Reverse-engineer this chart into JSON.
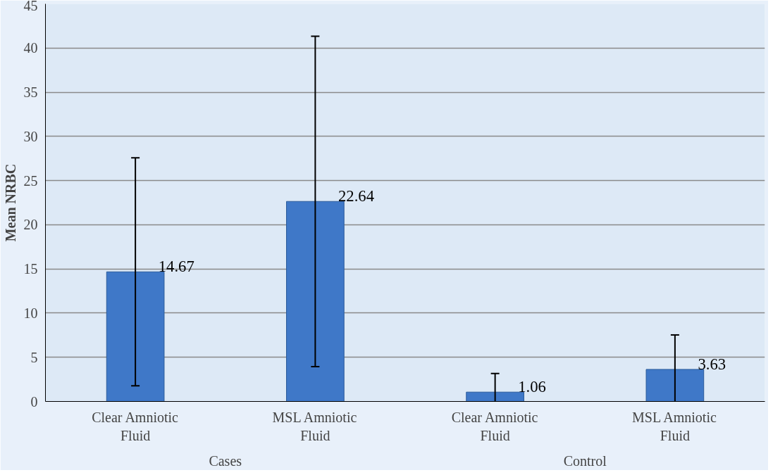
{
  "chart_data": {
    "type": "bar",
    "ylabel": "Mean NRBC",
    "categories": [
      "Clear Amniotic Fluid",
      "MSL Amniotic Fluid",
      "Clear Amniotic Fluid",
      "MSL Amniotic Fluid"
    ],
    "values": [
      14.67,
      22.64,
      1.06,
      3.63
    ],
    "errors": [
      12.9,
      18.7,
      2.1,
      3.9
    ],
    "color": "#3f78c8",
    "annotations": [
      "Cases",
      "Control"
    ],
    "data_labels": true,
    "ylim": [
      0,
      45
    ],
    "yticks": [
      0,
      5,
      10,
      15,
      20,
      25,
      30,
      35,
      40,
      45
    ],
    "grid": "y"
  }
}
